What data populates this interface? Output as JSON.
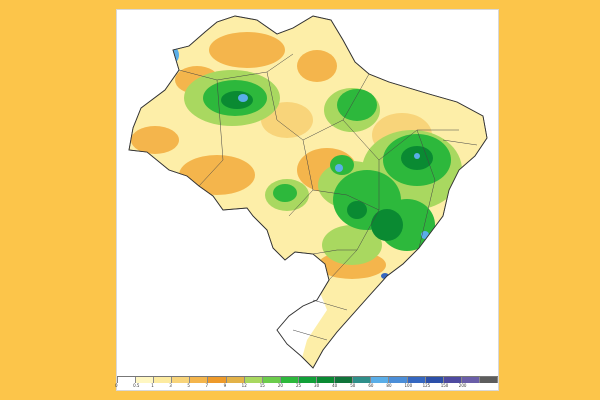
{
  "map": {
    "legend": {
      "colors": [
        "#ffffff",
        "#fff7c2",
        "#fdeba0",
        "#f8d47a",
        "#f4b54c",
        "#ee9a2a",
        "#e3b248",
        "#a9d860",
        "#6ccc4c",
        "#2db83c",
        "#11a038",
        "#0a8a32",
        "#10743a",
        "#2f8f8a",
        "#5aaee8",
        "#4b8ed8",
        "#3567c0",
        "#2c4fa8",
        "#4e4aa0",
        "#6a5ea8",
        "#5d5d5d"
      ],
      "labels": [
        "0",
        "0.5",
        "1",
        "3",
        "5",
        "7",
        "9",
        "12",
        "15",
        "20",
        "25",
        "30",
        "40",
        "50",
        "60",
        "80",
        "100",
        "125",
        "150",
        "200",
        ""
      ]
    }
  }
}
